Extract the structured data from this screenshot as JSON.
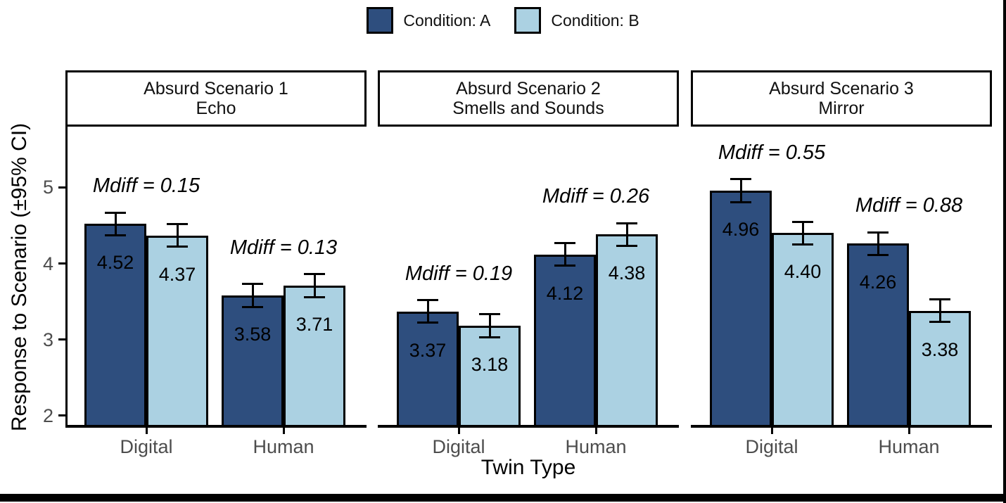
{
  "legend": {
    "items": [
      {
        "label": "Condition: A",
        "color": "#2E4E7E"
      },
      {
        "label": "Condition: B",
        "color": "#ABD1E2"
      }
    ]
  },
  "axes": {
    "y_title": "Response to Scenario (±95% CI)",
    "x_title": "Twin Type",
    "tick_label_color": "#4d4d4d"
  },
  "chart_data": {
    "type": "bar",
    "subtype": "grouped-faceted-bar-with-error-bars",
    "title": "",
    "xlabel": "Twin Type",
    "ylabel": "Response to Scenario (±95% CI)",
    "ylim": [
      1.84,
      5.8
    ],
    "y_ticks": [
      {
        "value": 5,
        "label": "5"
      },
      {
        "value": 4,
        "label": "4"
      },
      {
        "value": 3,
        "label": "3"
      },
      {
        "value": 2,
        "label": "2"
      }
    ],
    "categories": [
      "Digital",
      "Human"
    ],
    "series_names": [
      "Condition: A",
      "Condition: B"
    ],
    "series_colors": [
      "#2E4E7E",
      "#ABD1E2"
    ],
    "error_bar_halfwidth": 0.15,
    "legend_position": "top-center",
    "grid": false,
    "facets": [
      {
        "title_lines": [
          "Absurd Scenario 1",
          "Echo"
        ],
        "groups": [
          {
            "category": "Digital",
            "mdiff": "Mdiff = 0.15",
            "values": [
              4.52,
              4.37
            ],
            "labels": [
              "4.52",
              "4.37"
            ]
          },
          {
            "category": "Human",
            "mdiff": "Mdiff = 0.13",
            "values": [
              3.58,
              3.71
            ],
            "labels": [
              "3.58",
              "3.71"
            ]
          }
        ]
      },
      {
        "title_lines": [
          "Absurd Scenario 2",
          "Smells and Sounds"
        ],
        "groups": [
          {
            "category": "Digital",
            "mdiff": "Mdiff = 0.19",
            "values": [
              3.37,
              3.18
            ],
            "labels": [
              "3.37",
              "3.18"
            ]
          },
          {
            "category": "Human",
            "mdiff": "Mdiff = 0.26",
            "values": [
              4.12,
              4.38
            ],
            "labels": [
              "4.12",
              "4.38"
            ]
          }
        ]
      },
      {
        "title_lines": [
          "Absurd Scenario 3",
          "Mirror"
        ],
        "groups": [
          {
            "category": "Digital",
            "mdiff": "Mdiff = 0.55",
            "values": [
              4.96,
              4.4
            ],
            "labels": [
              "4.96",
              "4.40"
            ]
          },
          {
            "category": "Human",
            "mdiff": "Mdiff = 0.88",
            "values": [
              4.26,
              3.38
            ],
            "labels": [
              "4.26",
              "3.38"
            ]
          }
        ]
      }
    ]
  }
}
